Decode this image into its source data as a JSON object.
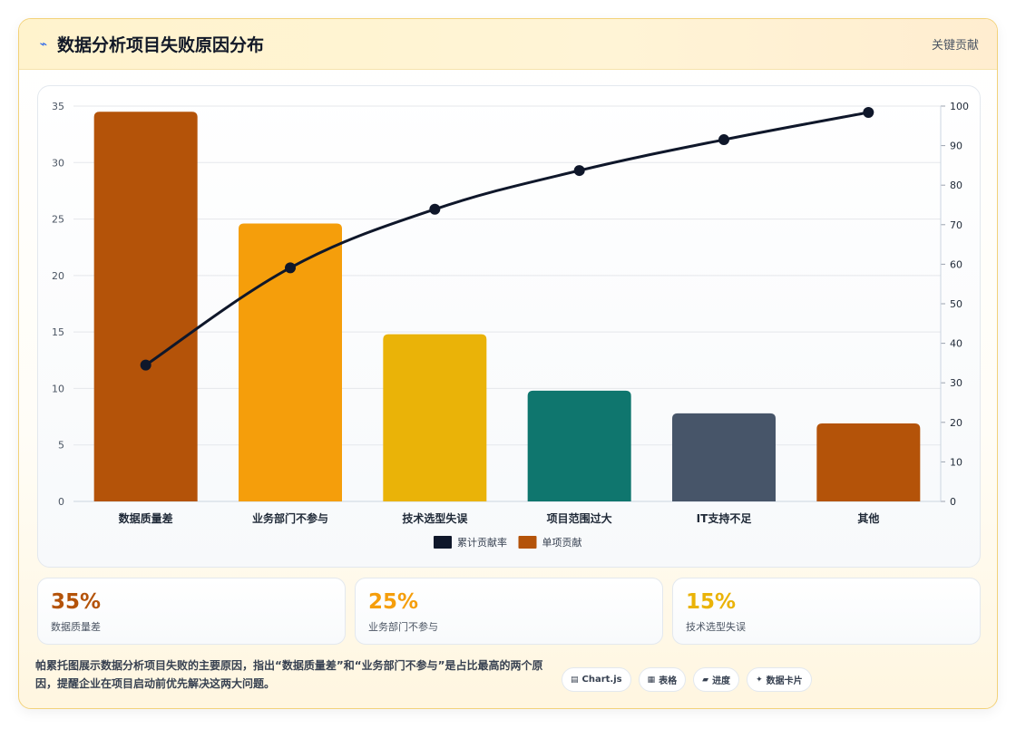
{
  "header": {
    "title": "数据分析项目失败原因分布",
    "icon": "trend-icon",
    "right_label": "关键贡献"
  },
  "colors": {
    "line": "#0f172a",
    "bars": [
      "#b45309",
      "#f59e0b",
      "#eab308",
      "#0f766e",
      "#475569",
      "#b45309"
    ],
    "kpi": [
      "#b45309",
      "#f59e0b",
      "#eab308"
    ]
  },
  "chart_data": {
    "type": "bar",
    "categories": [
      "数据质量差",
      "业务部门不参与",
      "技术选型失误",
      "项目范围过大",
      "IT支持不足",
      "其他"
    ],
    "series": [
      {
        "name": "单项贡献",
        "type": "bar",
        "axis": "left",
        "values": [
          34.5,
          24.6,
          14.8,
          9.8,
          7.8,
          6.9
        ]
      },
      {
        "name": "累计贡献率",
        "type": "line",
        "axis": "right",
        "values": [
          34.5,
          59.1,
          73.9,
          83.7,
          91.5,
          98.4
        ]
      }
    ],
    "y_left": {
      "min": 0,
      "max": 35,
      "ticks": [
        0,
        5,
        10,
        15,
        20,
        25,
        30,
        35
      ]
    },
    "y_right": {
      "min": 0,
      "max": 100,
      "ticks": [
        0,
        10,
        20,
        30,
        40,
        50,
        60,
        70,
        80,
        90,
        100
      ]
    },
    "legend": [
      {
        "label": "累计贡献率",
        "color": "#0f172a"
      },
      {
        "label": "单项贡献",
        "color": "#b45309"
      }
    ],
    "legend_position": "bottom",
    "grid": true
  },
  "kpis": [
    {
      "value": "35%",
      "label": "数据质量差"
    },
    {
      "value": "25%",
      "label": "业务部门不参与"
    },
    {
      "value": "15%",
      "label": "技术选型失误"
    }
  ],
  "footer": {
    "description": "帕累托图展示数据分析项目失败的主要原因，指出“数据质量差”和“业务部门不参与”是占比最高的两个原因，提醒企业在项目启动前优先解决这两大问题。",
    "tags": [
      {
        "icon": "chart-icon",
        "glyph": "▤",
        "label": "Chart.js"
      },
      {
        "icon": "table-icon",
        "glyph": "▦",
        "label": "表格"
      },
      {
        "icon": "progress-icon",
        "glyph": "▰",
        "label": "进度"
      },
      {
        "icon": "card-icon",
        "glyph": "✦",
        "label": "数据卡片"
      }
    ]
  }
}
